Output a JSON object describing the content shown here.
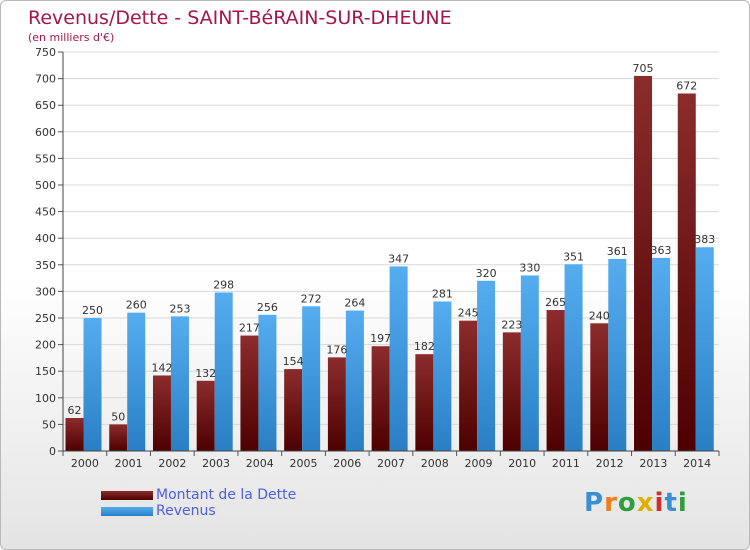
{
  "title": "Revenus/Dette - SAINT-BéRAIN-SUR-DHEUNE",
  "subtitle": "(en milliers d'€)",
  "logo": {
    "text": "Proxiti",
    "colors": [
      "#3a8fd0",
      "#ef7d1a",
      "#2f9e3f",
      "#e0b000",
      "#d62a2a",
      "#3a8fd0",
      "#2f9e3f"
    ]
  },
  "colors": {
    "dette": "#7a1a1a",
    "revenus": "#3d9be3",
    "title": "#a4164c",
    "legend_text": "#4d60e0"
  },
  "chart_data": {
    "type": "bar",
    "title": "Revenus/Dette - SAINT-BéRAIN-SUR-DHEUNE",
    "subtitle": "(en milliers d'€)",
    "categories": [
      "2000",
      "2001",
      "2002",
      "2003",
      "2004",
      "2005",
      "2006",
      "2007",
      "2008",
      "2009",
      "2010",
      "2011",
      "2012",
      "2013",
      "2014"
    ],
    "series": [
      {
        "name": "Montant de la Dette",
        "color": "#7a1a1a",
        "values": [
          62,
          50,
          142,
          132,
          217,
          154,
          176,
          197,
          182,
          245,
          223,
          265,
          240,
          705,
          672
        ]
      },
      {
        "name": "Revenus",
        "color": "#3d9be3",
        "values": [
          250,
          260,
          253,
          298,
          256,
          272,
          264,
          347,
          281,
          320,
          330,
          351,
          361,
          363,
          383
        ]
      }
    ],
    "ylim": [
      0,
      750
    ],
    "yticks": [
      0,
      50,
      100,
      150,
      200,
      250,
      300,
      350,
      400,
      450,
      500,
      550,
      600,
      650,
      700,
      750
    ],
    "grid": true,
    "legend": "bottom-left"
  }
}
